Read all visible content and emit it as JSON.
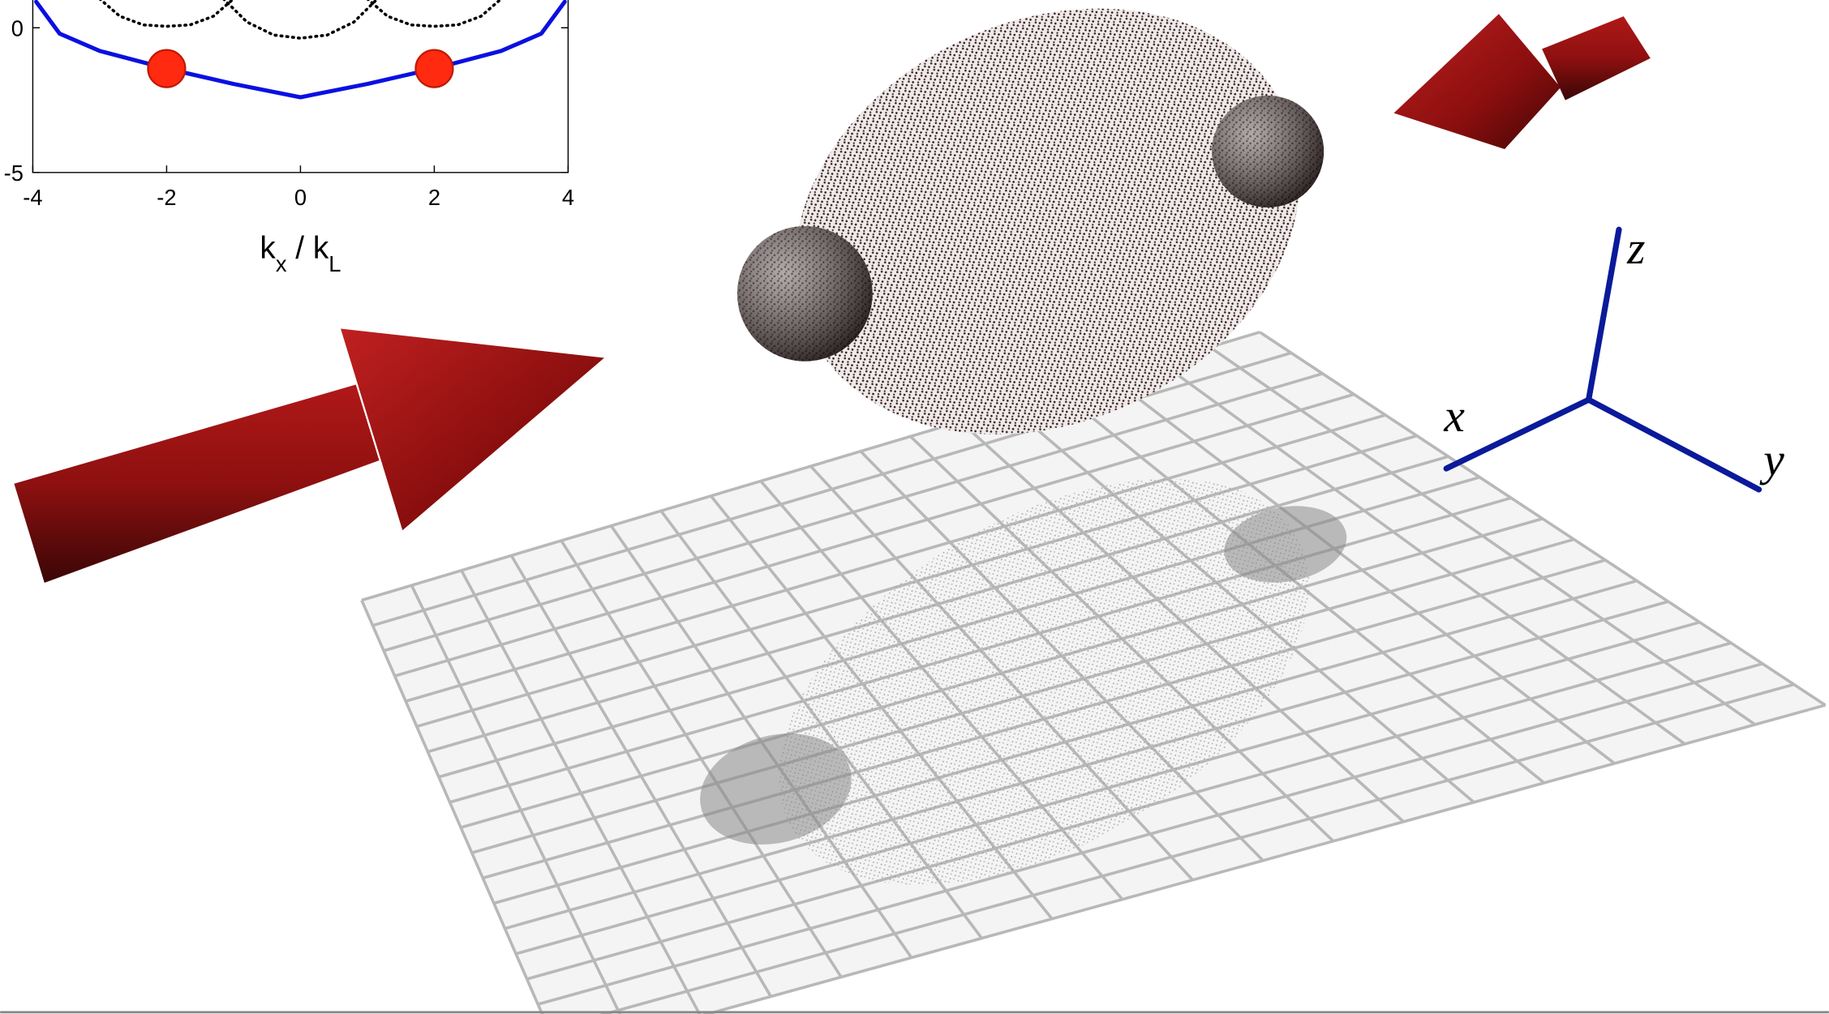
{
  "chart_data": {
    "type": "line",
    "xlabel": [
      "k",
      "x",
      " / k",
      "L"
    ],
    "xlim": [
      -4,
      4
    ],
    "xticks": [
      -4,
      -2,
      0,
      2,
      4
    ],
    "ylim": [
      -5,
      1
    ],
    "yticks": [
      -5,
      0
    ],
    "series": [
      {
        "color": "#0a10e0",
        "style": "solid",
        "x": [
          -3.95,
          -3.6,
          -3,
          -2,
          -1,
          0,
          1,
          2,
          3,
          3.6,
          3.95
        ],
        "values": [
          0.9,
          -0.2,
          -0.8,
          -1.41,
          -1.94,
          -2.4,
          -1.94,
          -1.41,
          -0.8,
          -0.2,
          0.9
        ]
      },
      {
        "color": "#000000",
        "style": "dotted",
        "x": [
          -3,
          -2.7,
          -2.35,
          -2,
          -1.65,
          -1.3,
          -1
        ],
        "values": [
          1,
          0.4,
          0.1,
          0.05,
          0.1,
          0.4,
          1
        ]
      },
      {
        "color": "#000000",
        "style": "dotted",
        "x": [
          -1.15,
          -0.8,
          -0.4,
          0,
          0.4,
          0.8,
          1.15
        ],
        "values": [
          1,
          0.2,
          -0.25,
          -0.36,
          -0.25,
          0.2,
          1
        ]
      },
      {
        "color": "#000000",
        "style": "dotted",
        "x": [
          1,
          1.3,
          1.65,
          2,
          2.35,
          2.7,
          3
        ],
        "values": [
          1,
          0.4,
          0.1,
          0.05,
          0.1,
          0.4,
          1
        ]
      },
      {
        "color": "#ff2a10",
        "style": "markers",
        "x": [
          -2,
          2
        ],
        "values": [
          -1.41,
          -1.41
        ]
      }
    ]
  },
  "axes_triad": {
    "x": "x",
    "y": "y",
    "z": "z"
  }
}
